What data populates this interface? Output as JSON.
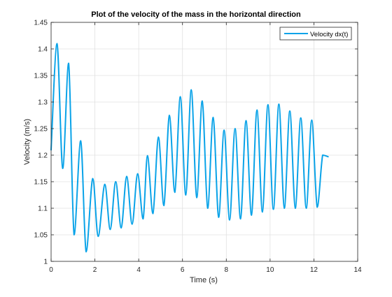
{
  "chart_data": {
    "type": "line",
    "title": "Plot of the velocity of the mass in the horizontal direction",
    "xlabel": "Time (s)",
    "ylabel": "Velocity (m/s)",
    "xlim": [
      0,
      14
    ],
    "ylim": [
      1,
      1.45
    ],
    "xticks": [
      0,
      2,
      4,
      6,
      8,
      10,
      12,
      14
    ],
    "yticks": [
      1,
      1.05,
      1.1,
      1.15,
      1.2,
      1.25,
      1.3,
      1.35,
      1.4,
      1.45
    ],
    "grid": true,
    "box": true,
    "legend": "top-right",
    "colors": {
      "series": "#0aa3e8",
      "axes": "#262626",
      "grid": "#e1e1e1",
      "background": "#ffffff"
    },
    "series": [
      {
        "name": "Velocity dx(t)",
        "x": [
          0,
          0.27,
          0.53,
          0.8,
          1.05,
          1.35,
          1.6,
          1.9,
          2.15,
          2.45,
          2.7,
          2.95,
          3.2,
          3.45,
          3.7,
          3.95,
          4.2,
          4.4,
          4.65,
          4.9,
          5.15,
          5.4,
          5.65,
          5.9,
          6.15,
          6.4,
          6.65,
          6.9,
          7.15,
          7.4,
          7.65,
          7.9,
          8.15,
          8.4,
          8.65,
          8.9,
          9.15,
          9.4,
          9.65,
          9.9,
          10.15,
          10.4,
          10.65,
          10.9,
          11.15,
          11.4,
          11.65,
          11.9,
          12.15,
          12.4,
          12.65
        ],
        "y": [
          1.21,
          1.41,
          1.175,
          1.373,
          1.05,
          1.227,
          1.018,
          1.156,
          1.047,
          1.145,
          1.06,
          1.15,
          1.063,
          1.16,
          1.07,
          1.165,
          1.08,
          1.199,
          1.09,
          1.234,
          1.105,
          1.275,
          1.13,
          1.31,
          1.125,
          1.323,
          1.12,
          1.302,
          1.1,
          1.271,
          1.083,
          1.247,
          1.078,
          1.25,
          1.08,
          1.265,
          1.087,
          1.285,
          1.093,
          1.295,
          1.098,
          1.296,
          1.1,
          1.283,
          1.1,
          1.27,
          1.1,
          1.266,
          1.102,
          1.2,
          1.197
        ]
      }
    ]
  }
}
